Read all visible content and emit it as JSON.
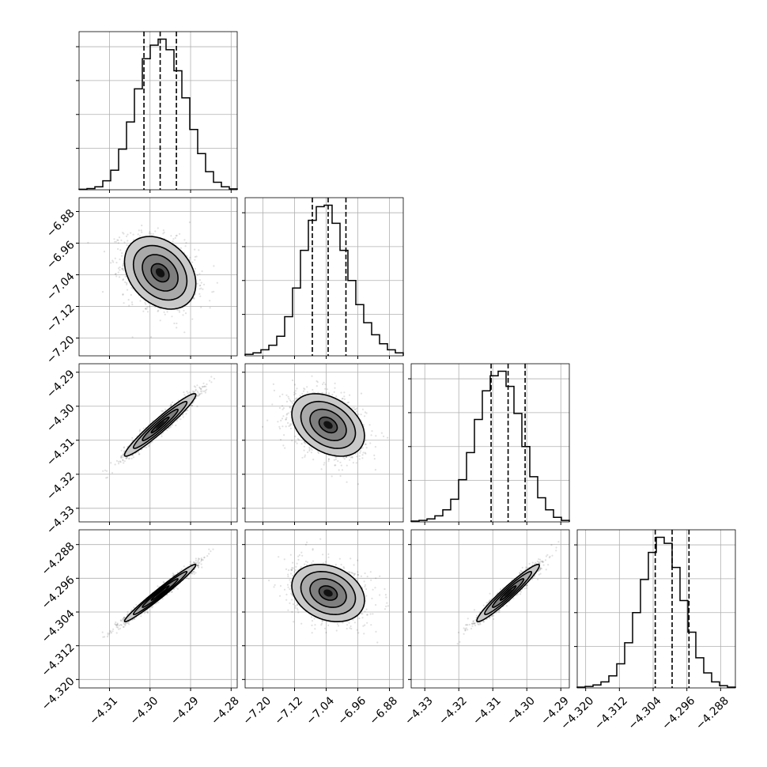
{
  "chart_data": {
    "type": "corner",
    "grid_lines": true,
    "quantiles": [
      0.16,
      0.5,
      0.84
    ],
    "parameters": [
      {
        "index": 0,
        "range": [
          -4.3175,
          -4.2785
        ],
        "mean": -4.2975,
        "sd": 0.0044,
        "ticks": [
          -4.31,
          -4.3,
          -4.29,
          -4.28
        ],
        "tick_labels": [
          "−4.31",
          "−4.30",
          "−4.29",
          "−4.28"
        ],
        "hist_bins": [
          0.003,
          0.008,
          0.02,
          0.06,
          0.13,
          0.27,
          0.45,
          0.67,
          0.87,
          0.96,
          1.0,
          0.93,
          0.79,
          0.61,
          0.4,
          0.24,
          0.12,
          0.05,
          0.02,
          0.006
        ],
        "q_values": [
          -4.3015,
          -4.2975,
          -4.2935
        ]
      },
      {
        "index": 1,
        "range": [
          -7.245,
          -6.845
        ],
        "mean": -7.035,
        "sd": 0.046,
        "ticks": [
          -7.2,
          -7.12,
          -7.04,
          -6.96,
          -6.88
        ],
        "tick_labels": [
          "−7.20",
          "−7.12",
          "−7.04",
          "−6.96",
          "−6.88"
        ],
        "hist_bins": [
          0.01,
          0.02,
          0.04,
          0.07,
          0.13,
          0.26,
          0.45,
          0.7,
          0.9,
          0.99,
          1.0,
          0.88,
          0.7,
          0.5,
          0.34,
          0.22,
          0.14,
          0.08,
          0.04,
          0.02
        ],
        "q_values": [
          -7.075,
          -7.035,
          -6.99
        ]
      },
      {
        "index": 2,
        "range": [
          -4.334,
          -4.2875
        ],
        "mean": -4.3055,
        "sd": 0.0046,
        "ticks": [
          -4.33,
          -4.32,
          -4.31,
          -4.3,
          -4.29
        ],
        "tick_labels": [
          "−4.33",
          "−4.32",
          "−4.31",
          "−4.30",
          "−4.29"
        ],
        "hist_bins": [
          0.005,
          0.01,
          0.02,
          0.04,
          0.08,
          0.15,
          0.28,
          0.46,
          0.68,
          0.87,
          0.97,
          1.0,
          0.9,
          0.72,
          0.5,
          0.3,
          0.16,
          0.08,
          0.03,
          0.01
        ],
        "q_values": [
          -4.3105,
          -4.3055,
          -4.3005
        ]
      },
      {
        "index": 3,
        "range": [
          -4.322,
          -4.2845
        ],
        "mean": -4.2995,
        "sd": 0.0034,
        "ticks": [
          -4.32,
          -4.312,
          -4.304,
          -4.296,
          -4.288
        ],
        "tick_labels": [
          "−4.320",
          "−4.312",
          "−4.304",
          "−4.296",
          "−4.288"
        ],
        "hist_bins": [
          0.005,
          0.01,
          0.02,
          0.04,
          0.08,
          0.16,
          0.3,
          0.5,
          0.72,
          0.9,
          1.0,
          0.96,
          0.8,
          0.58,
          0.37,
          0.2,
          0.1,
          0.04,
          0.015,
          0.005
        ],
        "q_values": [
          -4.3035,
          -4.2995,
          -4.2955
        ]
      }
    ],
    "correlations": [
      {
        "x": 0,
        "y": 1,
        "rho": -0.3
      },
      {
        "x": 0,
        "y": 2,
        "rho": 0.96
      },
      {
        "x": 1,
        "y": 2,
        "rho": -0.35
      },
      {
        "x": 0,
        "y": 3,
        "rho": 0.98
      },
      {
        "x": 1,
        "y": 3,
        "rho": -0.25
      },
      {
        "x": 2,
        "y": 3,
        "rho": 0.96
      }
    ],
    "contour_levels_sigma": [
      0.5,
      1.0,
      1.5,
      2.0
    ]
  }
}
